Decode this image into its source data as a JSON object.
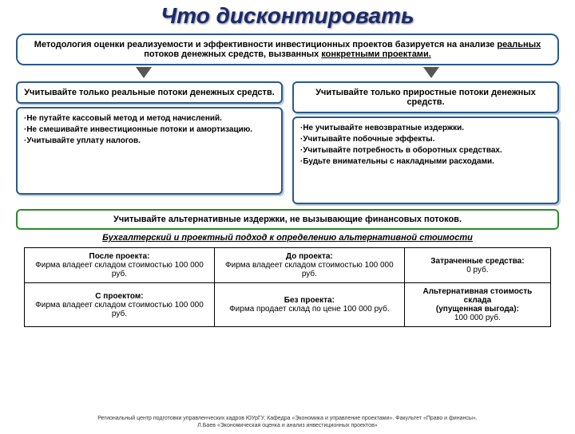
{
  "title": "Что дисконтировать",
  "intro": {
    "pre": "Методология оценки реализуемости и эффективности инвестиционных проектов базируется на анализе ",
    "u1": "реальных",
    "mid": " потоков денежных средств, вызванных ",
    "u2": "конкретными проектами.",
    "post": ""
  },
  "left": {
    "head": "Учитывайте только реальные потоки денежных средств.",
    "items": [
      "·Не путайте кассовый метод  и метод начислений.",
      "·Не смешивайте инвестиционные потоки и амортизацию.",
      "·Учитывайте уплату налогов."
    ]
  },
  "right": {
    "head": "Учитывайте только приростные потоки денежных средств.",
    "items": [
      "·Не учитывайте невозвратные издержки.",
      "·Учитывайте побочные эффекты.",
      "·Учитывайте потребность в оборотных средствах.",
      "·Будьте внимательны с накладными расходами."
    ]
  },
  "green": "Учитывайте альтернативные издержки, не вызывающие финансовых потоков.",
  "subtitle": "Бухгалтерский и проектный  подход к определению альтернативной стоимости",
  "table": {
    "r1c1h": "После проекта:",
    "r1c1t": "Фирма владеет складом стоимостью 100 000 руб.",
    "r1c2h": "До проекта:",
    "r1c2t": "Фирма владеет складом стоимостью 100 000 руб.",
    "r1c3h": "Затраченные средства:",
    "r1c3t": "0 руб.",
    "r2c1h": "С проектом:",
    "r2c1t": "Фирма владеет складом стоимостью 100 000 руб.",
    "r2c2h": "Без проекта:",
    "r2c2t": "Фирма продает склад по цене 100 000 руб.",
    "r2c3h": "Альтернативная стоимость склада",
    "r2c3m": "(упущенная выгода):",
    "r2c3t": "100 000 руб."
  },
  "footer1": "Региональный центр подготовки управленческих кадров ЮУрГУ.  Кафедра «Экономика и управление проектами». Факультет «Право и финансы».",
  "footer2": "Л.Баев «Экономическая оценка и анализ инвестиционных проектов»"
}
